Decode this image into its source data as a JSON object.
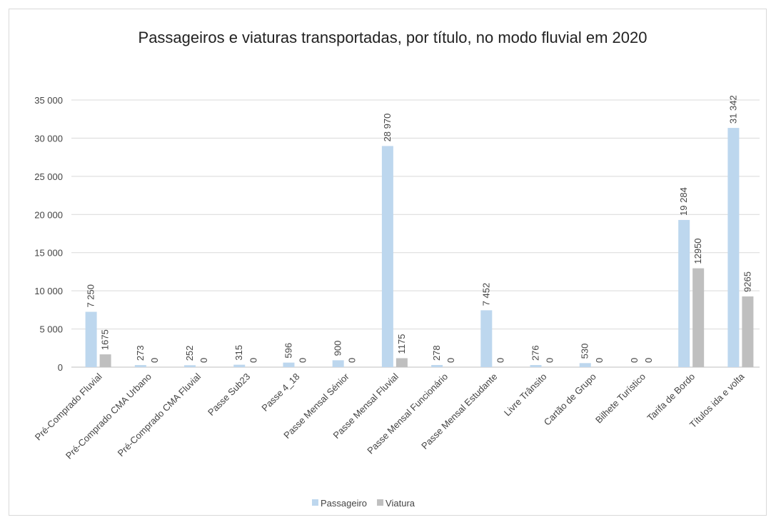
{
  "chart_data": {
    "type": "bar",
    "title": "Passageiros e viaturas transportadas, por título, no modo fluvial em 2020",
    "categories": [
      "Pré-Comprado Fluvial",
      "Pré-Comprado CMA Urbano",
      "Pré-Comprado CMA Fluvial",
      "Passe Sub23",
      "Passe 4_18",
      "Passe Mensal Sénior",
      "Passe Mensal Fluvial",
      "Passe Mensal Funcionário",
      "Passe Mensal Estudante",
      "Livre Trânsito",
      "Cartão de Grupo",
      "Bilhete Turístico",
      "Tarifa de Bordo",
      "Títulos ida e volta"
    ],
    "series": [
      {
        "name": "Passageiro",
        "color": "#bdd7ee",
        "values": [
          7250,
          273,
          252,
          315,
          596,
          900,
          28970,
          278,
          7452,
          276,
          530,
          0,
          19284,
          31342
        ],
        "value_labels": [
          "7 250",
          "273",
          "252",
          "315",
          "596",
          "900",
          "28 970",
          "278",
          "7 452",
          "276",
          "530",
          "0",
          "19 284",
          "31 342"
        ]
      },
      {
        "name": "Viatura",
        "color": "#bfbfbf",
        "values": [
          1675,
          0,
          0,
          0,
          0,
          0,
          1175,
          0,
          0,
          0,
          0,
          0,
          12950,
          9265
        ]
      }
    ],
    "ylim": [
      0,
      35000
    ],
    "yticks": [
      0,
      {
        "value": 5000,
        "label": "5 000"
      },
      {
        "value": 10000,
        "label": "10 000"
      },
      {
        "value": 15000,
        "label": "15 000"
      },
      {
        "value": 20000,
        "label": "20 000"
      },
      {
        "value": 25000,
        "label": "25 000"
      },
      {
        "value": 30000,
        "label": "30 000"
      },
      {
        "value": 35000,
        "label": "35 000"
      }
    ],
    "grid": true,
    "legend": "bottom"
  }
}
